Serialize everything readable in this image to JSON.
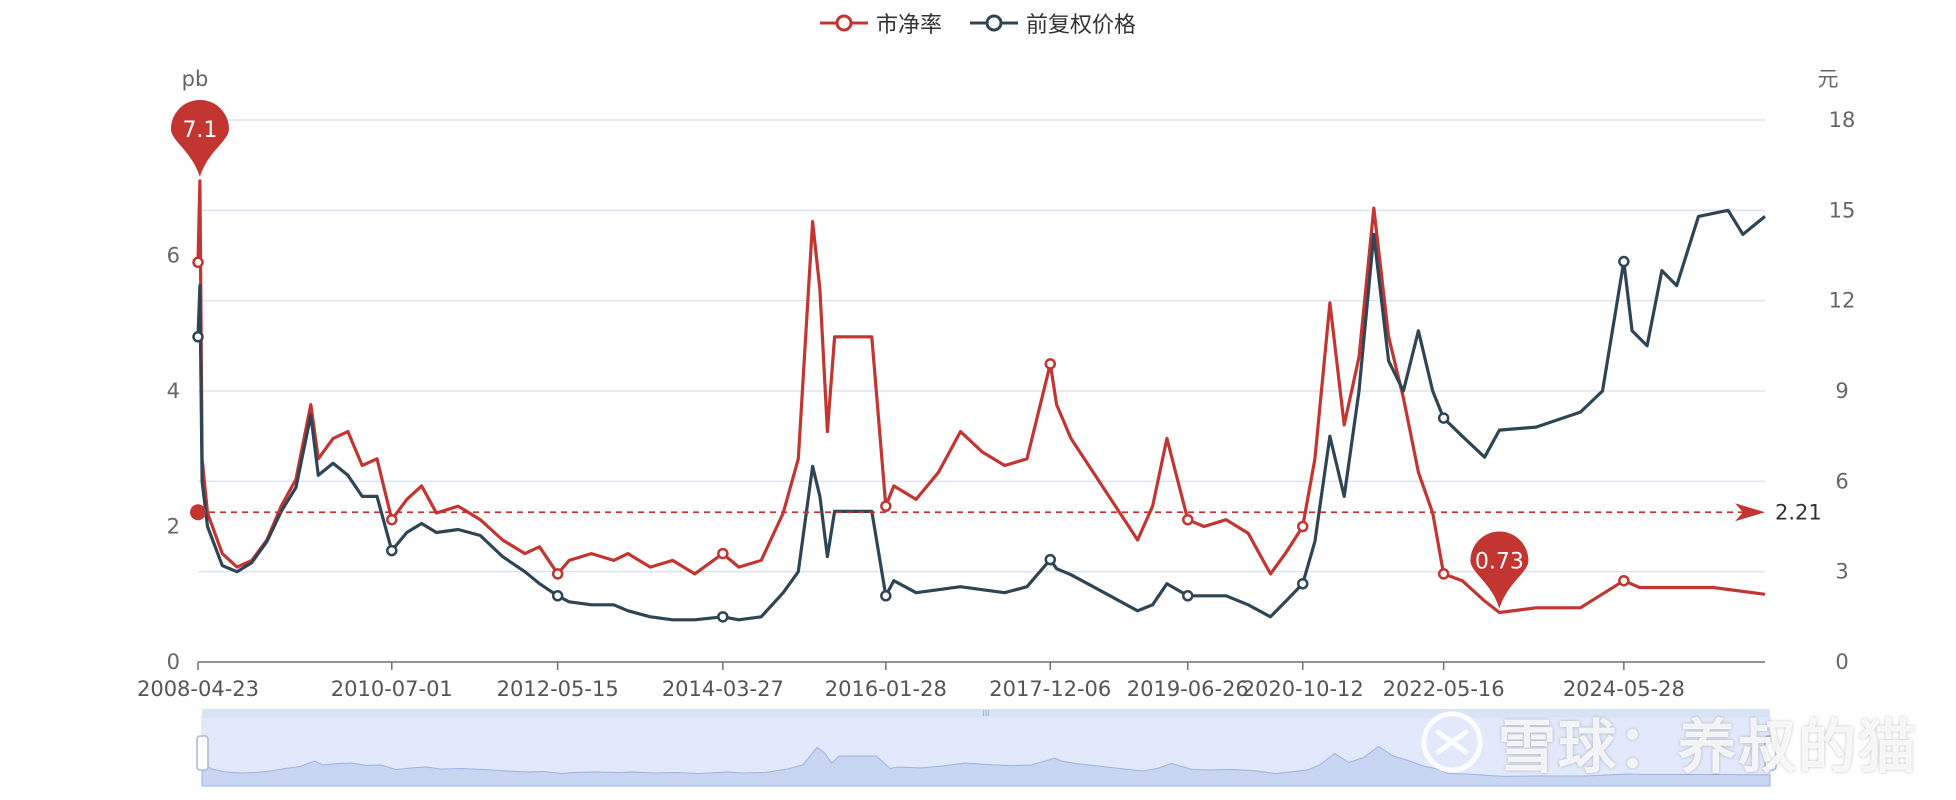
{
  "legend": {
    "pb_label": "市净率",
    "price_label": "前复权价格"
  },
  "colors": {
    "pb": "#c23531",
    "price": "#2f4554",
    "grid": "#dfe3f0",
    "zoom_fill": "#dce6fa",
    "zoom_border": "#c7d3ee"
  },
  "watermark": "雪球：养叔的猫",
  "chart_data": {
    "type": "line",
    "x_ticks": [
      "2008-04-23",
      "2010-07-01",
      "2012-05-15",
      "2014-03-27",
      "2016-01-28",
      "2017-12-06",
      "2019-06-26",
      "2020-10-12",
      "2022-05-16",
      "2024-05-28"
    ],
    "x_range": [
      "2008-04-23",
      "2025-12-31"
    ],
    "y_left": {
      "label": "pb",
      "ticks": [
        0,
        2,
        4,
        6
      ],
      "range": [
        0,
        8
      ]
    },
    "y_right": {
      "label": "元",
      "ticks": [
        0,
        3,
        6,
        9,
        12,
        15,
        18
      ],
      "range": [
        0,
        18
      ]
    },
    "series": [
      {
        "name": "市净率",
        "axis": "left",
        "points": [
          [
            "2008-04-23",
            5.9
          ],
          [
            "2008-05-01",
            7.1
          ],
          [
            "2008-05-10",
            3.0
          ],
          [
            "2008-06-01",
            2.2
          ],
          [
            "2008-08-01",
            1.6
          ],
          [
            "2008-10-01",
            1.4
          ],
          [
            "2008-12-01",
            1.5
          ],
          [
            "2009-02-01",
            1.8
          ],
          [
            "2009-04-01",
            2.3
          ],
          [
            "2009-06-01",
            2.7
          ],
          [
            "2009-08-01",
            3.8
          ],
          [
            "2009-09-01",
            3.0
          ],
          [
            "2009-11-01",
            3.3
          ],
          [
            "2010-01-01",
            3.4
          ],
          [
            "2010-03-01",
            2.9
          ],
          [
            "2010-05-01",
            3.0
          ],
          [
            "2010-07-01",
            2.1
          ],
          [
            "2010-09-01",
            2.4
          ],
          [
            "2010-11-01",
            2.6
          ],
          [
            "2011-01-01",
            2.2
          ],
          [
            "2011-04-01",
            2.3
          ],
          [
            "2011-07-01",
            2.1
          ],
          [
            "2011-10-01",
            1.8
          ],
          [
            "2012-01-01",
            1.6
          ],
          [
            "2012-03-01",
            1.7
          ],
          [
            "2012-05-15",
            1.3
          ],
          [
            "2012-07-01",
            1.5
          ],
          [
            "2012-10-01",
            1.6
          ],
          [
            "2013-01-01",
            1.5
          ],
          [
            "2013-03-01",
            1.6
          ],
          [
            "2013-06-01",
            1.4
          ],
          [
            "2013-09-01",
            1.5
          ],
          [
            "2013-12-01",
            1.3
          ],
          [
            "2014-03-27",
            1.6
          ],
          [
            "2014-06-01",
            1.4
          ],
          [
            "2014-09-01",
            1.5
          ],
          [
            "2014-12-01",
            2.2
          ],
          [
            "2015-02-01",
            3.0
          ],
          [
            "2015-04-01",
            6.5
          ],
          [
            "2015-05-01",
            5.5
          ],
          [
            "2015-06-01",
            3.4
          ],
          [
            "2015-07-01",
            4.8
          ],
          [
            "2015-09-01",
            4.8
          ],
          [
            "2015-12-01",
            4.8
          ],
          [
            "2016-01-28",
            2.3
          ],
          [
            "2016-03-01",
            2.6
          ],
          [
            "2016-06-01",
            2.4
          ],
          [
            "2016-09-01",
            2.8
          ],
          [
            "2016-12-01",
            3.4
          ],
          [
            "2017-03-01",
            3.1
          ],
          [
            "2017-06-01",
            2.9
          ],
          [
            "2017-09-01",
            3.0
          ],
          [
            "2017-12-06",
            4.4
          ],
          [
            "2018-01-01",
            3.8
          ],
          [
            "2018-03-01",
            3.3
          ],
          [
            "2018-06-01",
            2.8
          ],
          [
            "2018-09-01",
            2.3
          ],
          [
            "2018-12-01",
            1.8
          ],
          [
            "2019-02-01",
            2.3
          ],
          [
            "2019-04-01",
            3.3
          ],
          [
            "2019-06-26",
            2.1
          ],
          [
            "2019-09-01",
            2.0
          ],
          [
            "2019-12-01",
            2.1
          ],
          [
            "2020-03-01",
            1.9
          ],
          [
            "2020-06-01",
            1.3
          ],
          [
            "2020-08-01",
            1.6
          ],
          [
            "2020-10-12",
            2.0
          ],
          [
            "2020-12-01",
            3.0
          ],
          [
            "2021-02-01",
            5.3
          ],
          [
            "2021-04-01",
            3.5
          ],
          [
            "2021-06-01",
            4.5
          ],
          [
            "2021-08-01",
            6.7
          ],
          [
            "2021-10-01",
            4.8
          ],
          [
            "2021-12-01",
            3.9
          ],
          [
            "2022-02-01",
            2.8
          ],
          [
            "2022-04-01",
            2.2
          ],
          [
            "2022-05-16",
            1.3
          ],
          [
            "2022-08-01",
            1.2
          ],
          [
            "2022-11-01",
            0.9
          ],
          [
            "2023-01-01",
            0.73
          ],
          [
            "2023-06-01",
            0.8
          ],
          [
            "2023-12-01",
            0.8
          ],
          [
            "2024-05-28",
            1.2
          ],
          [
            "2024-08-01",
            1.1
          ],
          [
            "2024-12-01",
            1.1
          ],
          [
            "2025-06-01",
            1.1
          ],
          [
            "2025-12-31",
            1.0
          ]
        ]
      },
      {
        "name": "前复权价格",
        "axis": "right",
        "points": [
          [
            "2008-04-23",
            10.8
          ],
          [
            "2008-05-01",
            12.5
          ],
          [
            "2008-05-10",
            6.0
          ],
          [
            "2008-06-01",
            4.5
          ],
          [
            "2008-08-01",
            3.2
          ],
          [
            "2008-10-01",
            3.0
          ],
          [
            "2008-12-01",
            3.3
          ],
          [
            "2009-02-01",
            4.0
          ],
          [
            "2009-04-01",
            5.0
          ],
          [
            "2009-06-01",
            5.8
          ],
          [
            "2009-08-01",
            8.2
          ],
          [
            "2009-09-01",
            6.2
          ],
          [
            "2009-11-01",
            6.6
          ],
          [
            "2010-01-01",
            6.2
          ],
          [
            "2010-03-01",
            5.5
          ],
          [
            "2010-05-01",
            5.5
          ],
          [
            "2010-07-01",
            3.7
          ],
          [
            "2010-09-01",
            4.3
          ],
          [
            "2010-11-01",
            4.6
          ],
          [
            "2011-01-01",
            4.3
          ],
          [
            "2011-04-01",
            4.4
          ],
          [
            "2011-07-01",
            4.2
          ],
          [
            "2011-10-01",
            3.5
          ],
          [
            "2012-01-01",
            3.0
          ],
          [
            "2012-03-01",
            2.6
          ],
          [
            "2012-05-15",
            2.2
          ],
          [
            "2012-07-01",
            2.0
          ],
          [
            "2012-10-01",
            1.9
          ],
          [
            "2013-01-01",
            1.9
          ],
          [
            "2013-03-01",
            1.7
          ],
          [
            "2013-06-01",
            1.5
          ],
          [
            "2013-09-01",
            1.4
          ],
          [
            "2013-12-01",
            1.4
          ],
          [
            "2014-03-27",
            1.5
          ],
          [
            "2014-06-01",
            1.4
          ],
          [
            "2014-09-01",
            1.5
          ],
          [
            "2014-12-01",
            2.3
          ],
          [
            "2015-02-01",
            3.0
          ],
          [
            "2015-04-01",
            6.5
          ],
          [
            "2015-05-01",
            5.5
          ],
          [
            "2015-06-01",
            3.5
          ],
          [
            "2015-07-01",
            5.0
          ],
          [
            "2015-09-01",
            5.0
          ],
          [
            "2015-12-01",
            5.0
          ],
          [
            "2016-01-28",
            2.2
          ],
          [
            "2016-03-01",
            2.7
          ],
          [
            "2016-06-01",
            2.3
          ],
          [
            "2016-09-01",
            2.4
          ],
          [
            "2016-12-01",
            2.5
          ],
          [
            "2017-03-01",
            2.4
          ],
          [
            "2017-06-01",
            2.3
          ],
          [
            "2017-09-01",
            2.5
          ],
          [
            "2017-12-06",
            3.4
          ],
          [
            "2018-01-01",
            3.1
          ],
          [
            "2018-03-01",
            2.9
          ],
          [
            "2018-06-01",
            2.5
          ],
          [
            "2018-09-01",
            2.1
          ],
          [
            "2018-12-01",
            1.7
          ],
          [
            "2019-02-01",
            1.9
          ],
          [
            "2019-04-01",
            2.6
          ],
          [
            "2019-06-26",
            2.2
          ],
          [
            "2019-09-01",
            2.2
          ],
          [
            "2019-12-01",
            2.2
          ],
          [
            "2020-03-01",
            1.9
          ],
          [
            "2020-06-01",
            1.5
          ],
          [
            "2020-08-01",
            2.0
          ],
          [
            "2020-10-12",
            2.6
          ],
          [
            "2020-12-01",
            4.0
          ],
          [
            "2021-02-01",
            7.5
          ],
          [
            "2021-04-01",
            5.5
          ],
          [
            "2021-06-01",
            9.0
          ],
          [
            "2021-08-01",
            14.2
          ],
          [
            "2021-10-01",
            10.0
          ],
          [
            "2021-12-01",
            9.0
          ],
          [
            "2022-02-01",
            11.0
          ],
          [
            "2022-04-01",
            9.0
          ],
          [
            "2022-05-16",
            8.1
          ],
          [
            "2022-08-01",
            7.5
          ],
          [
            "2022-11-01",
            6.8
          ],
          [
            "2023-01-01",
            7.7
          ],
          [
            "2023-06-01",
            7.8
          ],
          [
            "2023-12-01",
            8.3
          ],
          [
            "2024-03-01",
            9.0
          ],
          [
            "2024-05-28",
            13.3
          ],
          [
            "2024-07-01",
            11.0
          ],
          [
            "2024-09-01",
            10.5
          ],
          [
            "2024-11-01",
            13.0
          ],
          [
            "2025-01-01",
            12.5
          ],
          [
            "2025-04-01",
            14.8
          ],
          [
            "2025-08-01",
            15.0
          ],
          [
            "2025-10-01",
            14.2
          ],
          [
            "2025-12-31",
            14.8
          ]
        ]
      }
    ],
    "mark_points": [
      {
        "series": "市净率",
        "label": "7.1",
        "date": "2008-05-01",
        "value": 7.1,
        "kind": "max"
      },
      {
        "series": "市净率",
        "label": "0.73",
        "date": "2023-01-01",
        "value": 0.73,
        "kind": "min"
      }
    ],
    "mark_line": {
      "series": "市净率",
      "label": "2.21",
      "value": 2.21,
      "kind": "average"
    },
    "grid": true,
    "legend_position": "top-center",
    "data_zoom": {
      "start": 0,
      "end": 100
    }
  }
}
